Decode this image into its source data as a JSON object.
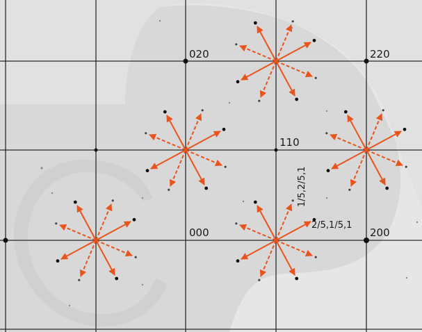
{
  "labels": {
    "l020": "020",
    "l220": "220",
    "l110": "110",
    "l000": "000",
    "l200": "200",
    "reflection_a": "2/5,1/5,1",
    "reflection_b": "1/5,2/5,1"
  },
  "colors": {
    "background": "#ffffff",
    "film": "#e1e1e1",
    "shadow": "#d3d3d3",
    "grid": "#2a2a2a",
    "arrow": "#e8541c",
    "spot": "#111111",
    "label": "#1a1a1a"
  }
}
